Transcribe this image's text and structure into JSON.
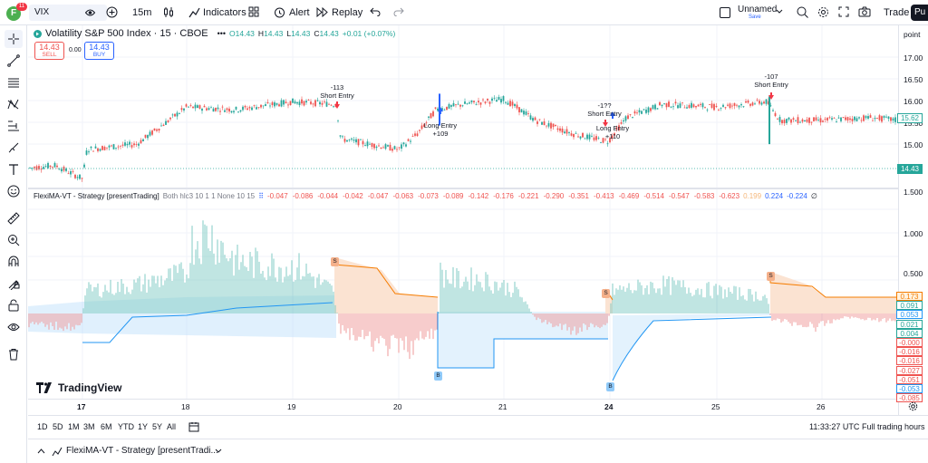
{
  "toolbar": {
    "user_initial": "F",
    "notif_count": "11",
    "symbol": "VIX",
    "interval": "15m",
    "indicators": "Indicators",
    "alert": "Alert",
    "replay": "Replay",
    "layout_name": "Unnamed",
    "layout_status": "Save",
    "trade": "Trade",
    "publish": "Pu"
  },
  "legend": {
    "title": "Volatility S&P 500 Index · 15 · CBOE",
    "o": "14.43",
    "h": "14.43",
    "l": "14.43",
    "c": "14.43",
    "change": "+0.01 (+0.07%)",
    "sell_price": "14.43",
    "sell_label": "SELL",
    "spread": "0.00",
    "buy_price": "14.43",
    "buy_label": "BUY"
  },
  "indicator": {
    "name": "FlexiMA-VT - Strategy [presentTrading]",
    "params": "Both hlc3 10 1 1 None 10 15",
    "values": [
      "-0.047",
      "-0.086",
      "-0.044",
      "-0.042",
      "-0.047",
      "-0.063",
      "-0.073",
      "-0.089",
      "-0.142",
      "-0.176",
      "-0.221",
      "-0.290",
      "-0.351",
      "-0.413",
      "-0.469",
      "-0.514",
      "-0.547",
      "-0.583",
      "-0.623"
    ],
    "value_orange": "0.199",
    "value_blue1": "0.224",
    "value_blue2": "-0.224",
    "value_end": "∅"
  },
  "price_axis": {
    "unit": "point",
    "ticks": [
      "17.00",
      "16.50",
      "16.00",
      "15.50",
      "15.00"
    ],
    "last_price": "14.43",
    "cursor_price": "15.62",
    "lower_ticks": [
      "1.500",
      "1.000",
      "0.500"
    ],
    "lower_tags": [
      {
        "v": "0.173",
        "c": "#f57c00",
        "bg": "#fff3e0"
      },
      {
        "v": "0.091",
        "c": "#26a69a",
        "bg": "#ffffff"
      },
      {
        "v": "0.053",
        "c": "#2196f3",
        "bg": "#ffffff"
      },
      {
        "v": "0.021",
        "c": "#26a69a",
        "bg": "#ffffff"
      },
      {
        "v": "0.004",
        "c": "#26a69a",
        "bg": "#ffffff"
      },
      {
        "v": "-0.000",
        "c": "#ef5350",
        "bg": "#ffffff"
      },
      {
        "v": "-0.016",
        "c": "#ef5350",
        "bg": "#ffffff"
      },
      {
        "v": "-0.016",
        "c": "#ef5350",
        "bg": "#ffffff"
      },
      {
        "v": "-0.027",
        "c": "#ef5350",
        "bg": "#ffffff"
      },
      {
        "v": "-0.051",
        "c": "#ef5350",
        "bg": "#ffffff"
      },
      {
        "v": "-0.053",
        "c": "#2196f3",
        "bg": "#ffffff"
      },
      {
        "v": "-0.085",
        "c": "#ef5350",
        "bg": "#ffffff"
      }
    ]
  },
  "time_axis": [
    "17",
    "18",
    "19",
    "20",
    "21",
    "24",
    "25",
    "26"
  ],
  "signals": [
    {
      "id": "short1",
      "qty": "-113",
      "label": "Short Entry"
    },
    {
      "id": "long1",
      "qty": "+109",
      "label": "Long Entry"
    },
    {
      "id": "short2",
      "qty": "-1??",
      "label": "Short Entry"
    },
    {
      "id": "long2",
      "qty": "+110",
      "label": "Long Entry"
    },
    {
      "id": "short3",
      "qty": "-107",
      "label": "Short Entry"
    }
  ],
  "markers": {
    "s": "S",
    "b": "B"
  },
  "watermark": "TradingView",
  "bottom": {
    "ranges": [
      "1D",
      "5D",
      "1M",
      "3M",
      "6M",
      "YTD",
      "1Y",
      "5Y",
      "All"
    ],
    "clock": "11:33:27 UTC",
    "session": "Full trading hours"
  },
  "panel": {
    "tab_label": "FlexiMA-VT - Strategy [presentTradi..."
  },
  "colors": {
    "up": "#26a69a",
    "down": "#ef5350",
    "accent": "#2962ff",
    "orange": "#f57c00"
  },
  "chart_data": {
    "type": "line",
    "x": [
      "17",
      "18",
      "19",
      "20",
      "21",
      "24",
      "25",
      "26"
    ],
    "series": [
      {
        "values": [
          14.8,
          15.9,
          15.9,
          15.2,
          15.9,
          15.2,
          15.9,
          15.5
        ]
      }
    ],
    "ylim": [
      14.3,
      17.2
    ]
  }
}
